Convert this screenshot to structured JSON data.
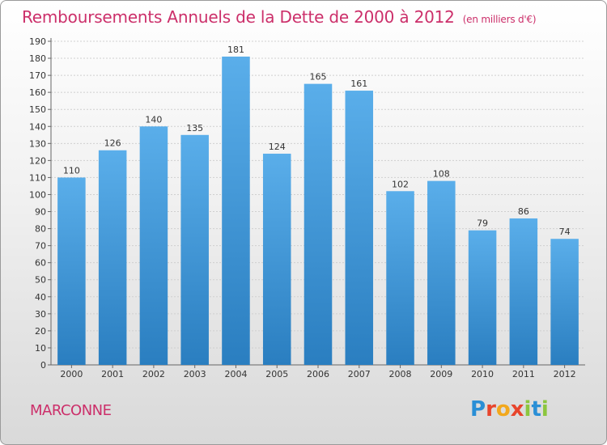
{
  "header": {
    "title": "Remboursements Annuels de la Dette de 2000 à 2012",
    "unit": "(en milliers d'€)"
  },
  "footer": {
    "town": "MARCONNE",
    "logo": "Proxiti"
  },
  "colors": {
    "title": "#cc2f6a",
    "bar_top": "#5aaeea",
    "bar_bottom": "#2a7ec0"
  },
  "chart_data": {
    "type": "bar",
    "title": "Remboursements Annuels de la Dette de 2000 à 2012",
    "xlabel": "",
    "ylabel": "",
    "ylim": [
      0,
      190
    ],
    "yticks": [
      0,
      10,
      20,
      30,
      40,
      50,
      60,
      70,
      80,
      90,
      100,
      110,
      120,
      130,
      140,
      150,
      160,
      170,
      180,
      190
    ],
    "grid": "horizontal",
    "categories": [
      "2000",
      "2001",
      "2002",
      "2003",
      "2004",
      "2005",
      "2006",
      "2007",
      "2008",
      "2009",
      "2010",
      "2011",
      "2012"
    ],
    "values": [
      110,
      126,
      140,
      135,
      181,
      124,
      165,
      161,
      102,
      108,
      79,
      86,
      74
    ]
  }
}
